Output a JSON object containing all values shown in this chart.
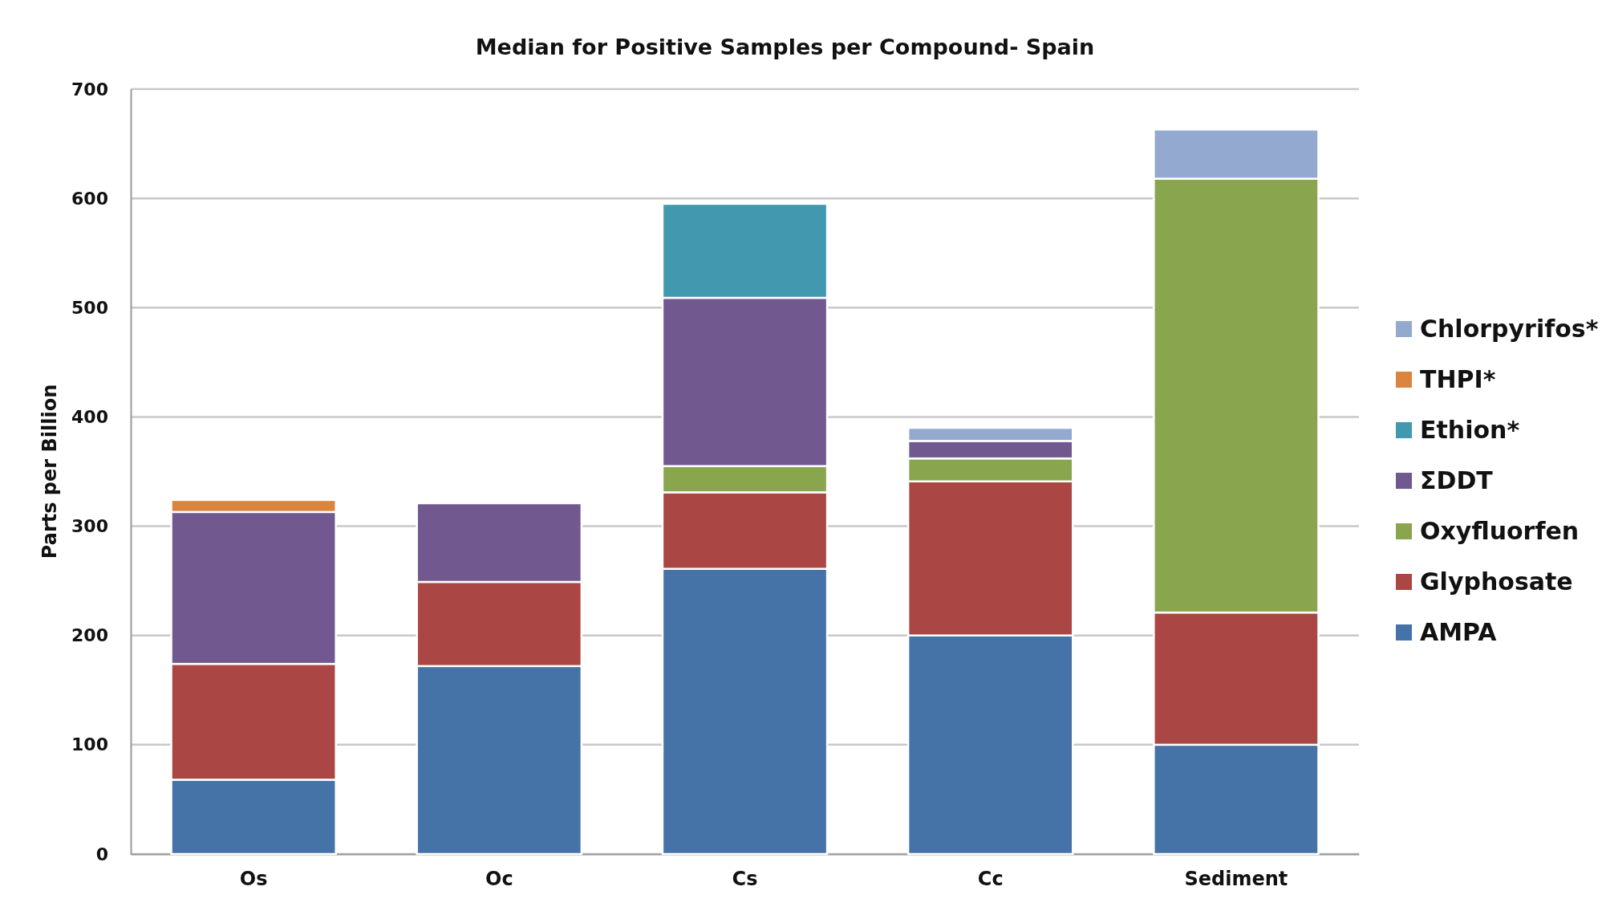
{
  "chart_data": {
    "type": "bar",
    "stacked": true,
    "title": "Median for Positive Samples per Compound- Spain",
    "ylabel": "Parts per Billion",
    "categories": [
      "Os",
      "Oc",
      "Cs",
      "Cc",
      "Sediment"
    ],
    "series": [
      {
        "name": "AMPA",
        "color": "#4572a7",
        "values": [
          68,
          172,
          261,
          200,
          100
        ]
      },
      {
        "name": "Glyphosate",
        "color": "#aa4643",
        "values": [
          106,
          77,
          70,
          141,
          121
        ]
      },
      {
        "name": "Oxyfluorfen",
        "color": "#89a54e",
        "values": [
          null,
          null,
          24,
          21,
          397
        ]
      },
      {
        "name": "ΣDDT",
        "color": "#71588f",
        "values": [
          139,
          72,
          154,
          16,
          null
        ]
      },
      {
        "name": "Ethion*",
        "color": "#4198af",
        "values": [
          null,
          null,
          86,
          null,
          null
        ]
      },
      {
        "name": "THPI*",
        "color": "#db843d",
        "values": [
          11,
          null,
          null,
          null,
          null
        ]
      },
      {
        "name": "Chlorpyrifos*",
        "color": "#93a9cf",
        "values": [
          null,
          null,
          null,
          12,
          45
        ]
      }
    ],
    "ylim": [
      0,
      700
    ],
    "yticks": [
      0,
      100,
      200,
      300,
      400,
      500,
      600,
      700
    ],
    "grid": "y",
    "legend": "right"
  }
}
